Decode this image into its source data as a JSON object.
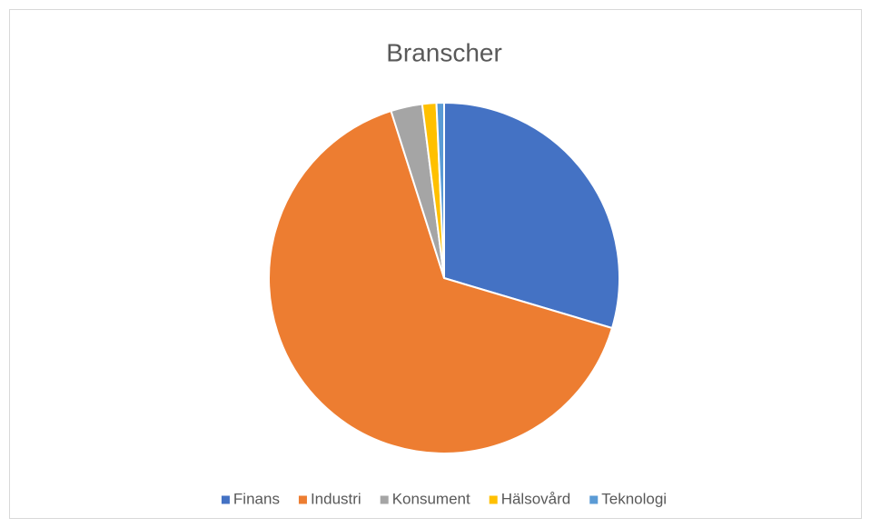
{
  "chart_data": {
    "type": "pie",
    "title": "Branscher",
    "categories": [
      "Finans",
      "Industri",
      "Konsument",
      "Hälsovård",
      "Teknologi"
    ],
    "values": [
      29.6,
      65.5,
      2.9,
      1.3,
      0.7
    ],
    "colors": [
      "#4472c4",
      "#ed7d31",
      "#a5a5a5",
      "#ffc000",
      "#5b9bd5"
    ],
    "legend": "bottom"
  }
}
